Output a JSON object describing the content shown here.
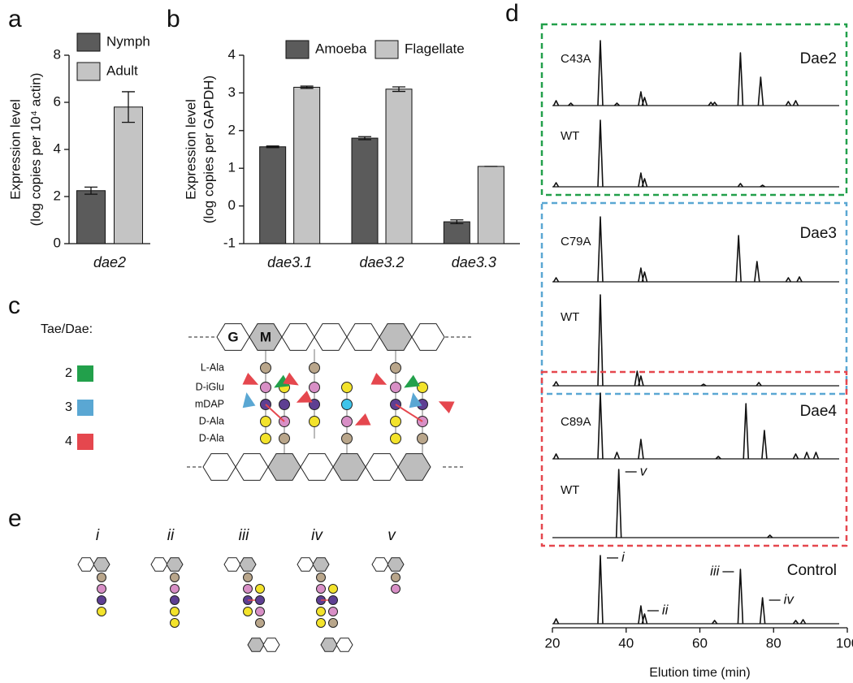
{
  "panels": [
    "a",
    "b",
    "c",
    "d",
    "e"
  ],
  "chart_data": [
    {
      "type": "bar",
      "y_label": [
        "Expression level",
        "(log copies per 10⁴ actin)"
      ],
      "categories": [
        "dae2"
      ],
      "series": [
        {
          "name": "Nymph",
          "color": "#5b5b5b",
          "values": [
            2.25
          ],
          "errors": [
            0.15
          ]
        },
        {
          "name": "Adult",
          "color": "#c4c4c4",
          "values": [
            5.8
          ],
          "errors": [
            0.65
          ]
        }
      ],
      "ylim": [
        0,
        8
      ],
      "yticks": [
        0,
        2,
        4,
        6,
        8
      ]
    },
    {
      "type": "bar",
      "y_label": [
        "Expression level",
        "(log copies per GAPDH)"
      ],
      "categories": [
        "dae3.1",
        "dae3.2",
        "dae3.3"
      ],
      "series": [
        {
          "name": "Amoeba",
          "color": "#5b5b5b",
          "values": [
            1.57,
            1.8,
            -0.42
          ],
          "errors": [
            0.02,
            0.04,
            0.05
          ]
        },
        {
          "name": "Flagellate",
          "color": "#c4c4c4",
          "values": [
            3.15,
            3.1,
            1.05
          ],
          "errors": [
            0.03,
            0.06,
            0
          ]
        }
      ],
      "ylim": [
        -1,
        4
      ],
      "yticks": [
        -1,
        0,
        1,
        2,
        3,
        4
      ]
    },
    {
      "type": "line",
      "x_label": "Elution time (min)",
      "xlim": [
        20,
        100
      ],
      "xticks": [
        20,
        40,
        60,
        80,
        100
      ],
      "groups": [
        {
          "name": "Dae2",
          "color": "#22a04b",
          "series": [
            {
              "name": "C43A",
              "x": [
                21,
                25,
                33,
                37.5,
                44,
                45,
                63,
                64,
                71,
                76.5,
                84,
                86
              ],
              "values": [
                6,
                3,
                80,
                3,
                17,
                10,
                4,
                4,
                65,
                35,
                5,
                6
              ]
            },
            {
              "name": "WT",
              "x": [
                21,
                33,
                44,
                45,
                71,
                77
              ],
              "values": [
                5,
                82,
                17,
                10,
                4,
                2
              ]
            }
          ]
        },
        {
          "name": "Dae3",
          "color": "#5aa7d3",
          "series": [
            {
              "name": "C79A",
              "x": [
                21,
                33,
                44,
                45,
                70.5,
                75.5,
                84,
                87
              ],
              "values": [
                5,
                80,
                17,
                12,
                57,
                25,
                5,
                6
              ]
            },
            {
              "name": "WT",
              "x": [
                21,
                33,
                43,
                44,
                61,
                76
              ],
              "values": [
                5,
                112,
                18,
                12,
                2,
                4
              ]
            }
          ]
        },
        {
          "name": "Dae4",
          "color": "#e5474e",
          "series": [
            {
              "name": "C89A",
              "x": [
                21,
                33,
                37.5,
                44,
                65,
                72.5,
                77.5,
                86,
                89,
                91.5
              ],
              "values": [
                6,
                81,
                8,
                24,
                3,
                68,
                35,
                6,
                8,
                8
              ]
            },
            {
              "name": "WT",
              "x": [
                38,
                79
              ],
              "values": [
                84,
                3
              ],
              "labels": [
                "v",
                null
              ]
            }
          ]
        }
      ],
      "control": {
        "name": "Control",
        "x": [
          21,
          33,
          44,
          45,
          64,
          71,
          77,
          86,
          88
        ],
        "values": [
          6,
          84,
          22,
          12,
          4,
          67,
          32,
          4,
          5
        ],
        "labels": [
          null,
          "i",
          "ii",
          null,
          null,
          "iii",
          "iv",
          null,
          null
        ]
      }
    }
  ],
  "diagram_c": {
    "legend_title": "Tae/Dae:",
    "legend": [
      {
        "label": "2",
        "color": "#22a04b"
      },
      {
        "label": "3",
        "color": "#5aa7d3"
      },
      {
        "label": "4",
        "color": "#e5474e"
      }
    ],
    "sugars": [
      "G",
      "M"
    ],
    "residues": [
      "L-Ala",
      "D-iGlu",
      "mDAP",
      "D-Ala",
      "D-Ala"
    ]
  },
  "diagram_e": {
    "labels": [
      "i",
      "ii",
      "iii",
      "iv",
      "v"
    ]
  }
}
